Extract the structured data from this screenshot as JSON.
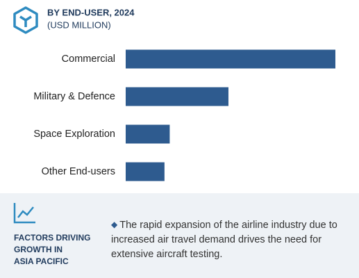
{
  "chart_data": {
    "type": "bar",
    "orientation": "horizontal",
    "title": "BY END-USER, 2024",
    "subtitle": "(USD MILLION)",
    "categories": [
      "Commercial",
      "Military & Defence",
      "Space Exploration",
      "Other End-users"
    ],
    "values": [
      100,
      49,
      21,
      18.5
    ],
    "color": "#2e5b8f"
  },
  "panel": {
    "heading": [
      "FACTORS DRIVING",
      "GROWTH IN",
      "ASIA PACIFIC"
    ],
    "text": "The rapid expansion of the airline industry due to increased air travel demand drives the need for extensive aircraft testing."
  }
}
